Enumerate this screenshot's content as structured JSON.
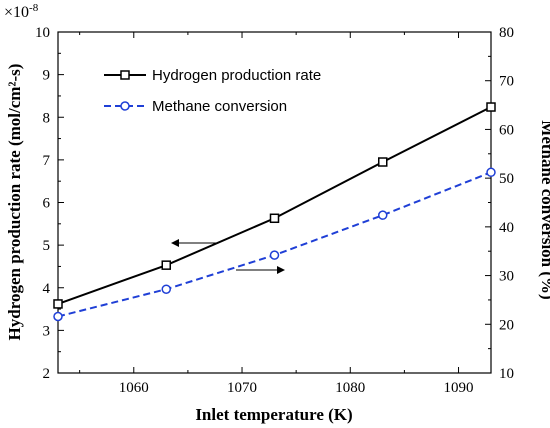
{
  "chart_data": {
    "type": "line",
    "xlabel": "Inlet temperature (K)",
    "ylabel_left": "Hydrogen production  rate (mol/cm²-s)",
    "ylabel_right": "Methane conversion (%)",
    "y_multiplier": "×10",
    "y_multiplier_exp": "-8",
    "xlim": [
      1053,
      1093
    ],
    "ylim_left": [
      2,
      10
    ],
    "ylim_right": [
      10,
      80
    ],
    "x_ticks": [
      1060,
      1070,
      1080,
      1090
    ],
    "y_ticks_left": [
      2,
      3,
      4,
      5,
      6,
      7,
      8,
      9,
      10
    ],
    "y_ticks_right": [
      10,
      20,
      30,
      40,
      50,
      60,
      70,
      80
    ],
    "grid": false,
    "legend_position": "top-left",
    "series": [
      {
        "name": "Hydrogen production rate",
        "axis": "left",
        "color": "#000000",
        "line_style": "solid",
        "marker": "square",
        "x": [
          1053,
          1063,
          1073,
          1083,
          1093
        ],
        "y": [
          3.62,
          4.53,
          5.63,
          6.95,
          8.24
        ]
      },
      {
        "name": "Methane conversion",
        "axis": "right",
        "color": "#1f3fd6",
        "line_style": "dashed",
        "marker": "circle",
        "x": [
          1053,
          1063,
          1073,
          1083,
          1093
        ],
        "y": [
          21.6,
          27.2,
          34.2,
          42.4,
          51.2
        ]
      }
    ],
    "annotations": [
      {
        "type": "arrow",
        "direction": "left",
        "points_to": "left axis"
      },
      {
        "type": "arrow",
        "direction": "right",
        "points_to": "right axis"
      }
    ]
  }
}
